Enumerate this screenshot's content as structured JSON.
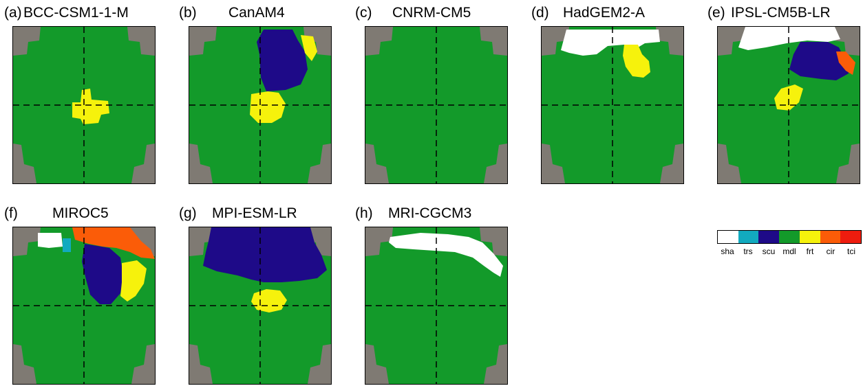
{
  "colors": {
    "background_gray": "#7f7a73",
    "sha": "#ffffff",
    "trs": "#12aabf",
    "scu": "#1e0a88",
    "mdl": "#139a2a",
    "frt": "#f6f20c",
    "cir": "#fb5c08",
    "tci": "#ee1c0e"
  },
  "panels": [
    {
      "tag": "(a)",
      "title": "BCC-CSM1-1-M"
    },
    {
      "tag": "(b)",
      "title": "CanAM4"
    },
    {
      "tag": "(c)",
      "title": "CNRM-CM5"
    },
    {
      "tag": "(d)",
      "title": "HadGEM2-A"
    },
    {
      "tag": "(e)",
      "title": "IPSL-CM5B-LR"
    },
    {
      "tag": "(f)",
      "title": "MIROC5"
    },
    {
      "tag": "(g)",
      "title": "MPI-ESM-LR"
    },
    {
      "tag": "(h)",
      "title": "MRI-CGCM3"
    }
  ],
  "legend": {
    "items": [
      {
        "label": "sha",
        "color": "#ffffff"
      },
      {
        "label": "trs",
        "color": "#12aabf"
      },
      {
        "label": "scu",
        "color": "#1e0a88"
      },
      {
        "label": "mdl",
        "color": "#139a2a"
      },
      {
        "label": "frt",
        "color": "#f6f20c"
      },
      {
        "label": "cir",
        "color": "#fb5c08"
      },
      {
        "label": "tci",
        "color": "#ee1c0e"
      }
    ]
  }
}
